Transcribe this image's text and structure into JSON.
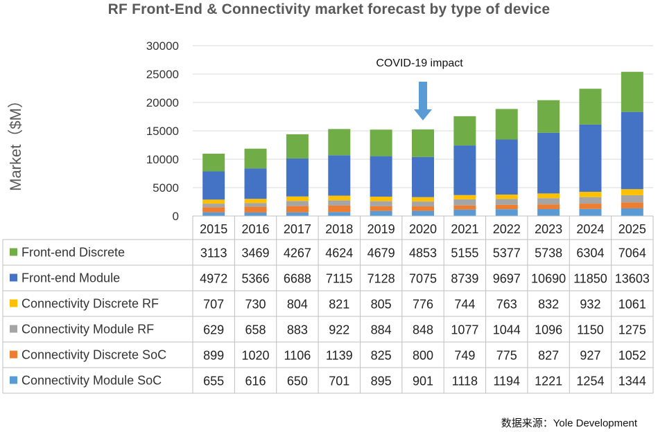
{
  "chart_data": {
    "type": "bar",
    "stacked": true,
    "title": "RF Front-End & Connectivity market forecast by type of device",
    "ylabel": "Market（$M）",
    "xlabel": "",
    "ylim": [
      0,
      30000
    ],
    "yticks": [
      "0",
      "5000",
      "10000",
      "15000",
      "20000",
      "25000",
      "30000"
    ],
    "grid": true,
    "legend": "data-table",
    "categories": [
      "2015",
      "2016",
      "2017",
      "2018",
      "2019",
      "2020",
      "2021",
      "2022",
      "2023",
      "2024",
      "2025"
    ],
    "series": [
      {
        "name": "Connectivity Module SoC",
        "color": "#5b9bd5",
        "values": [
          655,
          616,
          650,
          701,
          895,
          901,
          1118,
          1194,
          1221,
          1254,
          1344
        ]
      },
      {
        "name": "Connectivity Discrete SoC",
        "color": "#ed7d31",
        "values": [
          899,
          1020,
          1106,
          1139,
          825,
          800,
          749,
          775,
          827,
          927,
          1052
        ]
      },
      {
        "name": "Connectivity Module RF",
        "color": "#a5a5a5",
        "values": [
          629,
          658,
          883,
          922,
          884,
          848,
          1077,
          1044,
          1096,
          1150,
          1275
        ]
      },
      {
        "name": "Connectivity Discrete RF",
        "color": "#ffc000",
        "values": [
          707,
          730,
          804,
          821,
          805,
          776,
          744,
          763,
          832,
          932,
          1061
        ]
      },
      {
        "name": "Front-end Module",
        "color": "#4472c4",
        "values": [
          4972,
          5366,
          6688,
          7115,
          7128,
          7075,
          8739,
          9697,
          10690,
          11850,
          13603
        ]
      },
      {
        "name": "Front-end Discrete",
        "color": "#70ad47",
        "values": [
          3113,
          3469,
          4267,
          4624,
          4679,
          4853,
          5155,
          5377,
          5738,
          6304,
          7064
        ]
      }
    ],
    "table_order": [
      "Front-end Discrete",
      "Front-end Module",
      "Connectivity Discrete RF",
      "Connectivity Module RF",
      "Connectivity Discrete SoC",
      "Connectivity Module SoC"
    ],
    "annotations": [
      {
        "text": "COVID-19 impact",
        "category": "2020",
        "arrow_color": "#5b9bd5"
      }
    ]
  },
  "source": "数据来源：Yole Development"
}
